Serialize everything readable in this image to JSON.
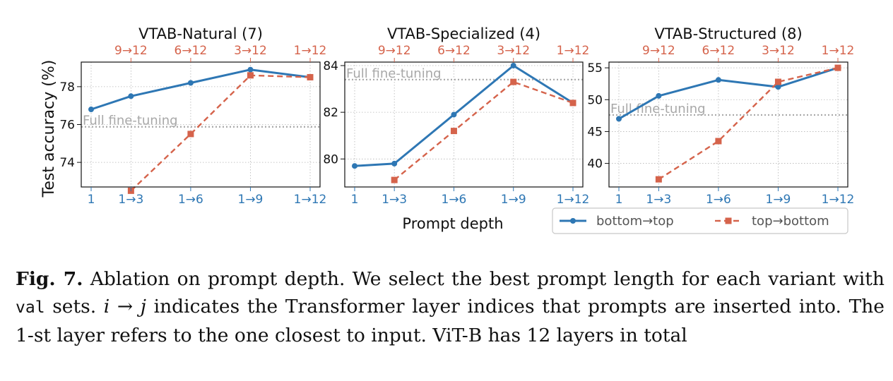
{
  "colors": {
    "bottom_top": "#2e77b4",
    "top_bottom": "#d5634b",
    "full_ft": "#a8a8a8",
    "bottom_tick_text": "#2e77b4",
    "top_tick_text": "#d5634b"
  },
  "shared": {
    "ylabel": "Test accuracy (%)",
    "xlabel": "Prompt depth",
    "baseline_label": "Full fine-tuning",
    "bottom_categories": [
      "1",
      "1→3",
      "1→6",
      "1→9",
      "1→12"
    ],
    "top_categories": [
      "9→12",
      "6→12",
      "3→12",
      "1→12"
    ]
  },
  "legend": {
    "bottom_top": "bottom→top",
    "top_bottom": "top→bottom"
  },
  "chart_data": [
    {
      "type": "line",
      "title": "VTAB-Natural (7)",
      "x": [
        1,
        3,
        6,
        9,
        12
      ],
      "ylim": [
        72.7,
        79.3
      ],
      "yticks": [
        74,
        76,
        78
      ],
      "baseline": 75.88,
      "series": [
        {
          "name": "bottom→top",
          "x": [
            1,
            3,
            6,
            9,
            12
          ],
          "values": [
            76.8,
            77.5,
            78.2,
            78.9,
            78.5
          ]
        },
        {
          "name": "top→bottom",
          "x": [
            3,
            6,
            9,
            12
          ],
          "values": [
            72.5,
            75.5,
            78.6,
            78.5
          ]
        }
      ]
    },
    {
      "type": "line",
      "title": "VTAB-Specialized (4)",
      "x": [
        1,
        3,
        6,
        9,
        12
      ],
      "ylim": [
        78.8,
        84.15
      ],
      "yticks": [
        80,
        82,
        84
      ],
      "baseline": 83.4,
      "series": [
        {
          "name": "bottom→top",
          "x": [
            1,
            3,
            6,
            9,
            12
          ],
          "values": [
            79.7,
            79.8,
            81.9,
            84.0,
            82.4
          ]
        },
        {
          "name": "top→bottom",
          "x": [
            3,
            6,
            9,
            12
          ],
          "values": [
            79.1,
            81.2,
            83.3,
            82.4
          ]
        }
      ]
    },
    {
      "type": "line",
      "title": "VTAB-Structured (8)",
      "x": [
        1,
        3,
        6,
        9,
        12
      ],
      "ylim": [
        36.3,
        55.9
      ],
      "yticks": [
        40,
        45,
        50,
        55
      ],
      "baseline": 47.6,
      "series": [
        {
          "name": "bottom→top",
          "x": [
            1,
            3,
            6,
            9,
            12
          ],
          "values": [
            47.0,
            50.6,
            53.1,
            52.0,
            55.0
          ]
        },
        {
          "name": "top→bottom",
          "x": [
            3,
            6,
            9,
            12
          ],
          "values": [
            37.5,
            43.5,
            52.8,
            55.0
          ]
        }
      ]
    }
  ],
  "caption": {
    "label": "Fig. 7.",
    "text_1": " Ablation on prompt depth. We select the best prompt length for each variant with ",
    "code": "val",
    "text_2": " sets. ",
    "math": "i → j",
    "text_3": " indicates the Transformer layer indices that prompts are inserted into. The 1-st layer refers to the one closest to input. ViT-B has 12 layers in total"
  }
}
